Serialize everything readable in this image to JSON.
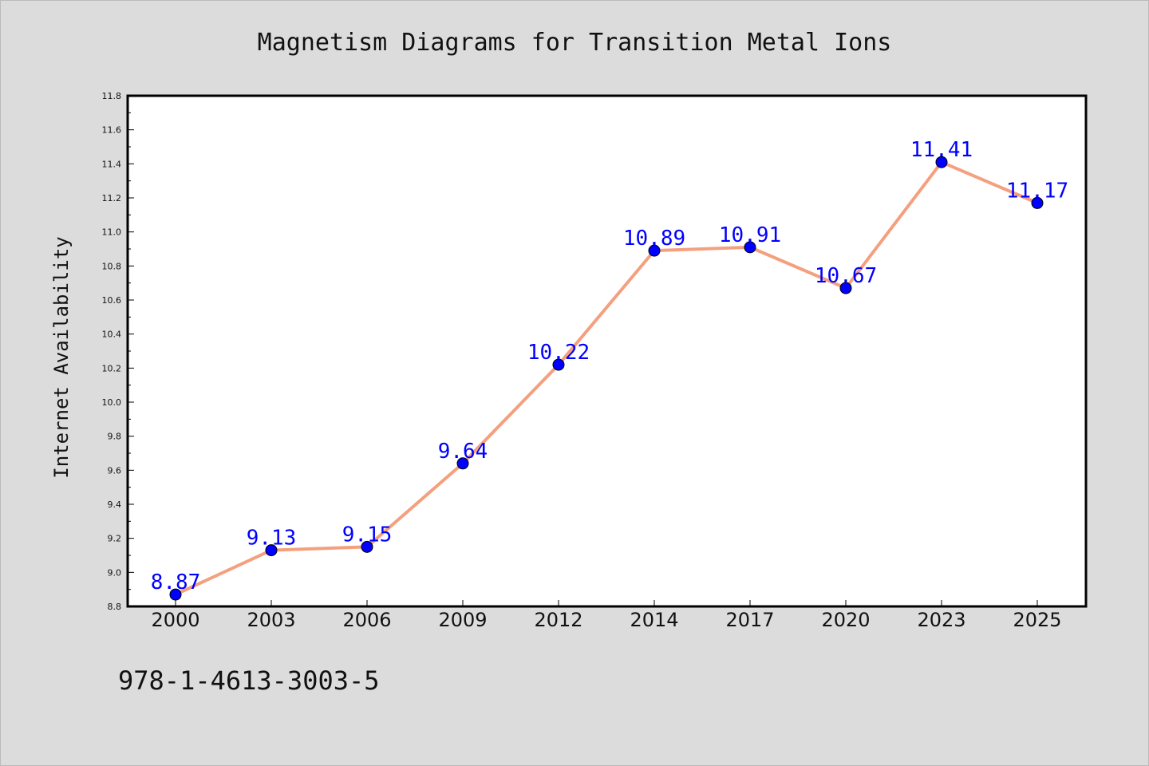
{
  "chart_data": {
    "type": "line",
    "title": "Magnetism Diagrams for Transition Metal Ions",
    "xlabel": "",
    "ylabel": "Internet Availability",
    "categories": [
      "2000",
      "2003",
      "2006",
      "2009",
      "2012",
      "2014",
      "2017",
      "2020",
      "2023",
      "2025"
    ],
    "series": [
      {
        "values": [
          8.87,
          9.13,
          9.15,
          9.64,
          10.22,
          10.89,
          10.91,
          10.67,
          11.41,
          11.17
        ],
        "data_labels": [
          "8.87",
          "9.13",
          "9.15",
          "9.64",
          "10.22",
          "10.89",
          "10.91",
          "10.67",
          "11.41",
          "11.17"
        ]
      }
    ],
    "ylim": [
      8.8,
      11.8
    ],
    "yticks": [
      "8.8",
      "9.0",
      "9.2",
      "9.4",
      "9.6",
      "9.8",
      "10.0",
      "10.2",
      "10.4",
      "10.6",
      "10.8",
      "11.0",
      "11.2",
      "11.4",
      "11.6",
      "11.8"
    ],
    "grid": false,
    "legend": "none",
    "colors": {
      "line": "#f4a07f",
      "marker": "#0000ff",
      "data_label": "#0000ff",
      "plot_background": "#ffffff",
      "figure_background": "#dcdcdc"
    }
  },
  "footer": {
    "isbn": "978-1-4613-3003-5"
  }
}
